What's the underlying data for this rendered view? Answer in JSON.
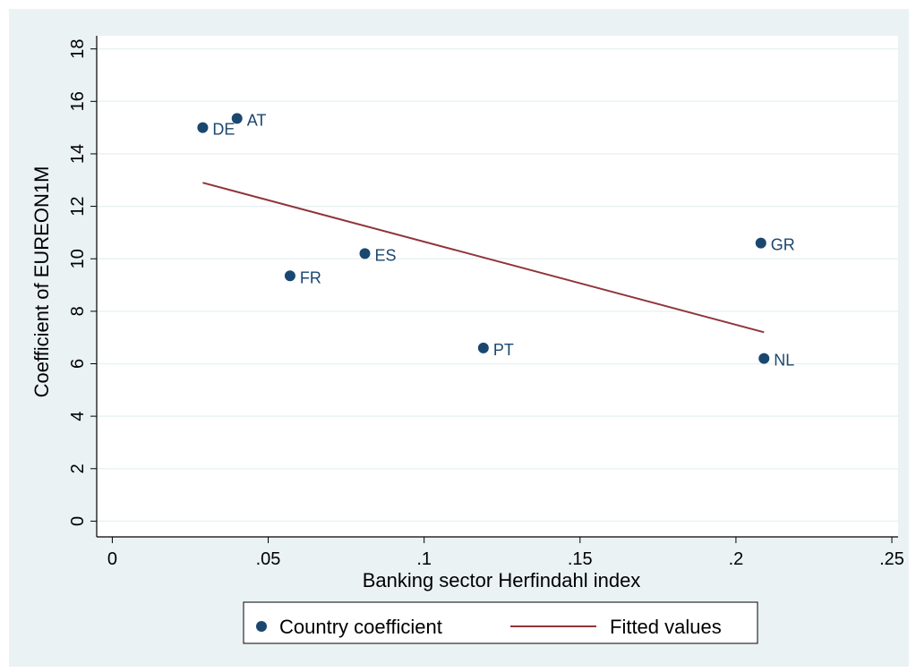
{
  "chart_data": {
    "type": "scatter",
    "xlabel": "Banking sector Herfindahl index",
    "ylabel": "Coefficient of EUREON1M",
    "xlim": [
      -0.005,
      0.252
    ],
    "ylim": [
      -0.6,
      18.5
    ],
    "xticks": [
      0,
      0.05,
      0.1,
      0.15,
      0.2,
      0.25
    ],
    "xtick_labels": [
      "0",
      ".05",
      ".1",
      ".15",
      ".2",
      ".25"
    ],
    "yticks": [
      0,
      2,
      4,
      6,
      8,
      10,
      12,
      14,
      16,
      18
    ],
    "ytick_labels": [
      "0",
      "2",
      "4",
      "6",
      "8",
      "10",
      "12",
      "14",
      "16",
      "18"
    ],
    "grid": "horizontal",
    "legend_position": "bottom",
    "series": [
      {
        "name": "Country coefficient",
        "kind": "scatter",
        "color": "#1a476f",
        "points": [
          {
            "label": "DE",
            "x": 0.029,
            "y": 15.0
          },
          {
            "label": "AT",
            "x": 0.04,
            "y": 15.35
          },
          {
            "label": "FR",
            "x": 0.057,
            "y": 9.35
          },
          {
            "label": "ES",
            "x": 0.081,
            "y": 10.2
          },
          {
            "label": "PT",
            "x": 0.119,
            "y": 6.6
          },
          {
            "label": "GR",
            "x": 0.208,
            "y": 10.6
          },
          {
            "label": "NL",
            "x": 0.209,
            "y": 6.2
          }
        ]
      },
      {
        "name": "Fitted values",
        "kind": "line",
        "color": "#90353b",
        "points": [
          {
            "x": 0.029,
            "y": 12.9
          },
          {
            "x": 0.209,
            "y": 7.2
          }
        ]
      }
    ]
  }
}
